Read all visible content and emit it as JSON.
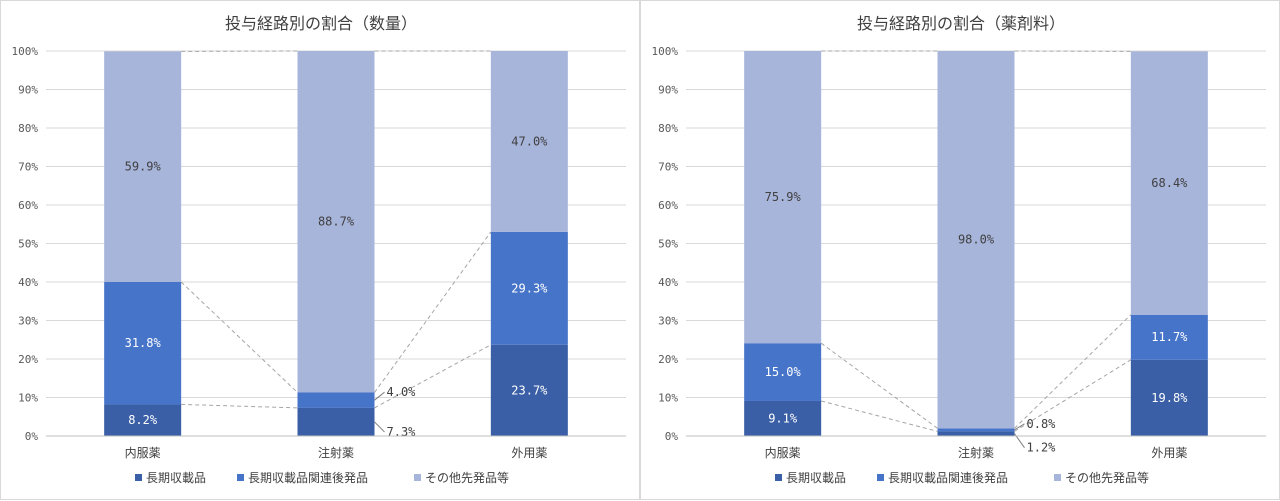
{
  "chart_data": [
    {
      "type": "bar",
      "stacked": true,
      "title": "投与経路別の割合（数量）",
      "categories": [
        "内服薬",
        "注射薬",
        "外用薬"
      ],
      "ylim": [
        0,
        100
      ],
      "yticks": [
        "0%",
        "10%",
        "20%",
        "30%",
        "40%",
        "50%",
        "60%",
        "70%",
        "80%",
        "90%",
        "100%"
      ],
      "grid": true,
      "legend": "bottom",
      "series": [
        {
          "name": "長期収載品",
          "color": "#3a5fa6",
          "values": [
            8.2,
            7.3,
            23.7
          ],
          "labels": [
            "8.2%",
            "7.3%",
            "23.7%"
          ]
        },
        {
          "name": "長期収載品関連後発品",
          "color": "#4674c9",
          "values": [
            31.8,
            4.0,
            29.3
          ],
          "labels": [
            "31.8%",
            "4.0%",
            "29.3%"
          ]
        },
        {
          "name": "その他先発品等",
          "color": "#a8b5db",
          "values": [
            59.9,
            88.7,
            47.0
          ],
          "labels": [
            "59.9%",
            "88.7%",
            "47.0%"
          ]
        }
      ]
    },
    {
      "type": "bar",
      "stacked": true,
      "title": "投与経路別の割合（薬剤料）",
      "categories": [
        "内服薬",
        "注射薬",
        "外用薬"
      ],
      "ylim": [
        0,
        100
      ],
      "yticks": [
        "0%",
        "10%",
        "20%",
        "30%",
        "40%",
        "50%",
        "60%",
        "70%",
        "80%",
        "90%",
        "100%"
      ],
      "grid": true,
      "legend": "bottom",
      "series": [
        {
          "name": "長期収載品",
          "color": "#3a5fa6",
          "values": [
            9.1,
            1.2,
            19.8
          ],
          "labels": [
            "9.1%",
            "1.2%",
            "19.8%"
          ]
        },
        {
          "name": "長期収載品関連後発品",
          "color": "#4674c9",
          "values": [
            15.0,
            0.8,
            11.7
          ],
          "labels": [
            "15.0%",
            "0.8%",
            "11.7%"
          ]
        },
        {
          "name": "その他先発品等",
          "color": "#a8b5db",
          "values": [
            75.9,
            98.0,
            68.4
          ],
          "labels": [
            "75.9%",
            "98.0%",
            "68.4%"
          ]
        }
      ]
    }
  ]
}
